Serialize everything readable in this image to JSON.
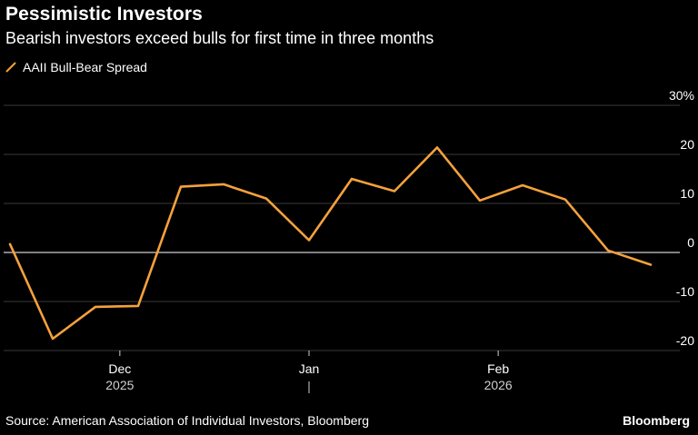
{
  "header": {
    "title": "Pessimistic Investors",
    "subtitle": "Bearish investors exceed bulls for first time in three months"
  },
  "footer": {
    "source": "Source: American Association of Individual Investors, Bloomberg",
    "brand": "Bloomberg"
  },
  "colors": {
    "background": "#000000",
    "series": "#f5a13c",
    "grid": "#3a3a3a",
    "zero_line": "#cfcfcf",
    "text": "#ffffff",
    "axis_text": "#d0d0d0"
  },
  "chart_data": {
    "type": "line",
    "title": "Pessimistic Investors",
    "subtitle": "Bearish investors exceed bulls for first time in three months",
    "xlabel": "",
    "ylabel": "",
    "x": [
      "2025-11-13",
      "2025-11-20",
      "2025-11-27",
      "2025-12-04",
      "2025-12-11",
      "2025-12-18",
      "2025-12-25",
      "2026-01-01",
      "2026-01-08",
      "2026-01-15",
      "2026-01-22",
      "2026-01-29",
      "2026-02-05",
      "2026-02-12",
      "2026-02-19",
      "2026-02-26"
    ],
    "series": [
      {
        "name": "AAII Bull-Bear Spread",
        "values": [
          1.7,
          -17.6,
          -11.1,
          -10.9,
          13.4,
          13.9,
          11.0,
          2.5,
          15.0,
          12.5,
          21.4,
          10.6,
          13.7,
          10.8,
          0.4,
          -2.5
        ]
      }
    ],
    "xlim": [
      "2025-11-13",
      "2026-03-01"
    ],
    "ylim": [
      -20,
      30
    ],
    "y_ticks": [
      {
        "value": 30,
        "label": "30%"
      },
      {
        "value": 20,
        "label": "20"
      },
      {
        "value": 10,
        "label": "10"
      },
      {
        "value": 0,
        "label": "0"
      },
      {
        "value": -10,
        "label": "-10"
      },
      {
        "value": -20,
        "label": "-20"
      }
    ],
    "x_ticks": [
      {
        "date": "2025-12-01",
        "label": "Dec"
      },
      {
        "date": "2026-01-01",
        "label": "Jan"
      },
      {
        "date": "2026-02-01",
        "label": "Feb"
      }
    ],
    "year_labels": [
      {
        "date": "2025-12-01",
        "label": "2025"
      },
      {
        "date": "2026-02-01",
        "label": "2026"
      }
    ],
    "year_divider": "2026-01-01",
    "grid": true,
    "legend_position": "top-left",
    "y_axis_position": "right"
  }
}
